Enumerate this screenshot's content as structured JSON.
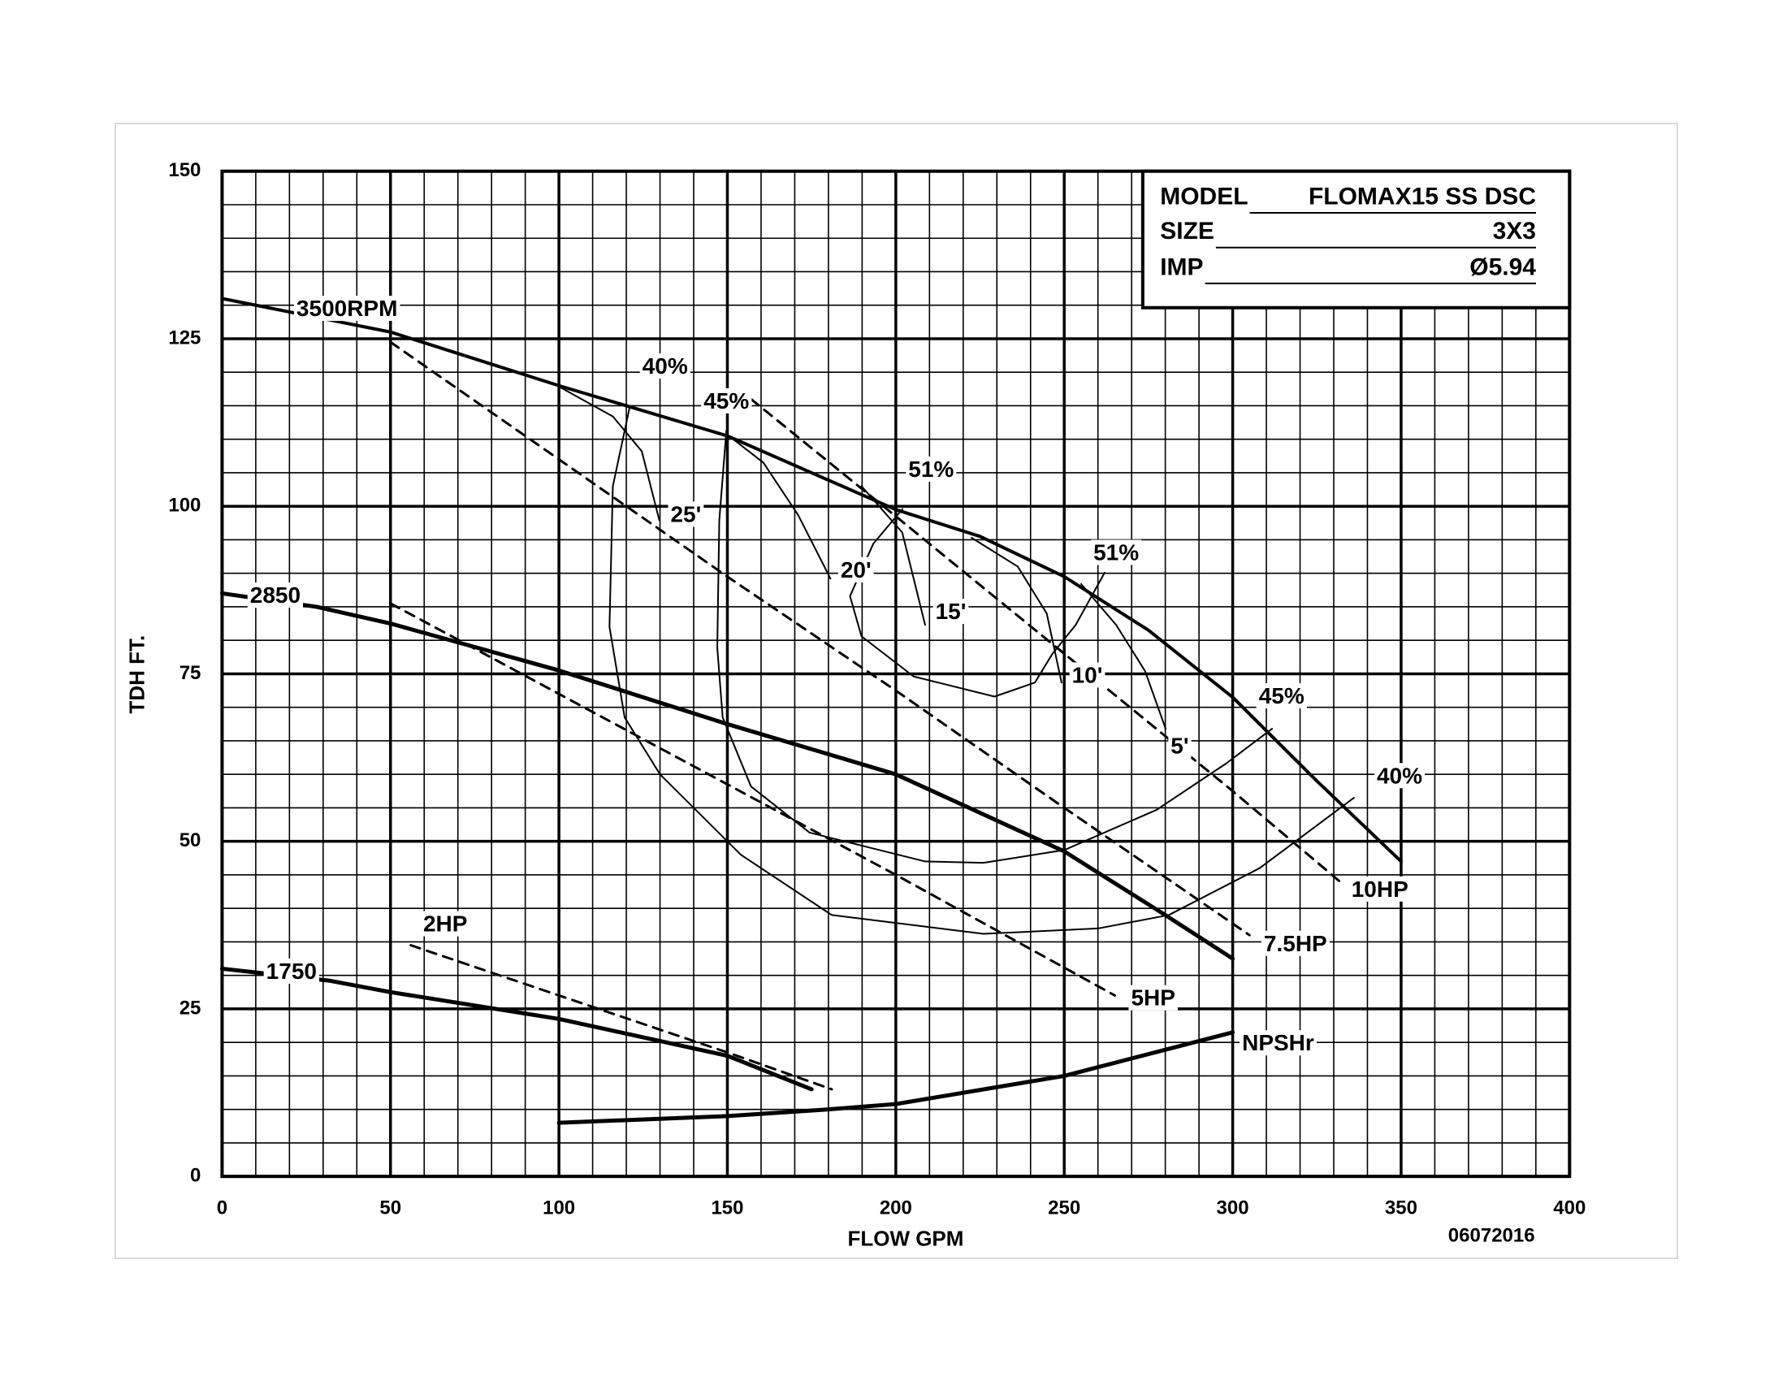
{
  "chart_data": {
    "type": "line",
    "xlabel": "FLOW GPM",
    "ylabel": "TDH FT.",
    "footer": "06072016",
    "info": {
      "model_label": "MODEL",
      "model": "FLOMAX15 SS DSC",
      "size_label": "SIZE",
      "size": "3X3",
      "imp_label": "IMP",
      "imp": "Ø5.94"
    },
    "xlim": [
      0,
      400
    ],
    "ylim": [
      0,
      150
    ],
    "xticks": [
      0,
      50,
      100,
      150,
      200,
      250,
      300,
      350,
      400
    ],
    "yticks": [
      0,
      25,
      50,
      75,
      100,
      125,
      150
    ],
    "grid": true,
    "minor_xstep": 10,
    "minor_ystep": 5,
    "series": [
      {
        "name": "3500RPM",
        "color": "#000000",
        "width": 4,
        "dash": false,
        "x": [
          0,
          50,
          100,
          150,
          200,
          225,
          250,
          275,
          300,
          325,
          350
        ],
        "values": [
          131,
          126,
          118,
          110.5,
          99.5,
          95.5,
          89.5,
          81.5,
          71.5,
          59,
          47
        ]
      },
      {
        "name": "2850",
        "color": "#000000",
        "width": 5,
        "dash": false,
        "x": [
          0,
          28,
          50,
          100,
          150,
          200,
          250,
          280,
          300
        ],
        "values": [
          87,
          85,
          82.5,
          75.5,
          67.5,
          60,
          48.5,
          39,
          32.5
        ]
      },
      {
        "name": "1750",
        "color": "#000000",
        "width": 5,
        "dash": false,
        "x": [
          0,
          32,
          50,
          100,
          150,
          175
        ],
        "values": [
          31,
          29.2,
          27.5,
          23.5,
          18,
          13
        ]
      },
      {
        "name": "NPSHr",
        "color": "#000000",
        "width": 5,
        "dash": false,
        "x": [
          100,
          150,
          180,
          200,
          250,
          300
        ],
        "values": [
          8,
          9,
          10,
          10.8,
          15,
          21.5
        ]
      },
      {
        "name": "10HP",
        "color": "#000000",
        "width": 3,
        "dash": true,
        "x": [
          157,
          200,
          250,
          300,
          333
        ],
        "values": [
          116,
          98.5,
          78,
          57.5,
          43.5
        ]
      },
      {
        "name": "7.5HP",
        "color": "#000000",
        "width": 3,
        "dash": true,
        "x": [
          50,
          100,
          150,
          200,
          250,
          305
        ],
        "values": [
          124.5,
          107,
          89.5,
          72.5,
          55,
          36
        ]
      },
      {
        "name": "5HP",
        "color": "#000000",
        "width": 3,
        "dash": true,
        "x": [
          50,
          100,
          150,
          200,
          265
        ],
        "values": [
          85.5,
          72,
          58.5,
          45,
          27
        ]
      },
      {
        "name": "2HP",
        "color": "#000000",
        "width": 3,
        "dash": true,
        "x": [
          56,
          100,
          150,
          181
        ],
        "values": [
          34.5,
          27,
          18.5,
          13
        ]
      },
      {
        "name": "40%",
        "color": "#000000",
        "width": 2,
        "dash": false,
        "x": [
          121,
          116,
          115,
          119.5,
          130,
          154,
          181,
          226,
          260,
          281,
          308,
          336
        ],
        "values": [
          114.8,
          103,
          82,
          68.5,
          60,
          48,
          39,
          36.2,
          37,
          39,
          46,
          56.5
        ]
      },
      {
        "name": "45%",
        "color": "#000000",
        "width": 2,
        "dash": false,
        "x": [
          149.7,
          147.6,
          147,
          148.6,
          157,
          174.4,
          208.7,
          226,
          250,
          277.4,
          298,
          311.7
        ],
        "values": [
          111.3,
          97.9,
          78.9,
          68.5,
          58.2,
          51.3,
          47,
          46.8,
          48.7,
          54.7,
          61.6,
          66.8
        ]
      },
      {
        "name": "51%",
        "color": "#000000",
        "width": 2,
        "dash": false,
        "x": [
          202,
          193.3,
          186.4,
          189.8,
          205.3,
          229.3,
          241.3,
          246.5,
          253.4,
          262
        ],
        "values": [
          99.6,
          94.4,
          86.6,
          80.6,
          74.6,
          71.6,
          73.7,
          78,
          82.3,
          90.1
        ]
      },
      {
        "name": "25'",
        "color": "#000000",
        "width": 2,
        "dash": false,
        "x": [
          100.6,
          116,
          124.6,
          129.8
        ],
        "values": [
          117.7,
          113.4,
          108.2,
          97.9
        ]
      },
      {
        "name": "20'",
        "color": "#000000",
        "width": 2,
        "dash": false,
        "x": [
          149.7,
          160.7,
          171,
          180.6
        ],
        "values": [
          110.8,
          106.5,
          98.7,
          89.2
        ]
      },
      {
        "name": "15'",
        "color": "#000000",
        "width": 2,
        "dash": false,
        "x": [
          189.8,
          201.9,
          208.7
        ],
        "values": [
          103,
          96.1,
          82.3
        ]
      },
      {
        "name": "10'",
        "color": "#000000",
        "width": 2,
        "dash": false,
        "x": [
          222.5,
          236.2,
          244.8,
          249.2
        ],
        "values": [
          95.3,
          91,
          84,
          73.7
        ]
      },
      {
        "name": "5'",
        "color": "#000000",
        "width": 2,
        "dash": false,
        "x": [
          255,
          265.4,
          274,
          280.1
        ],
        "values": [
          88.4,
          82.3,
          75.4,
          66.8
        ]
      }
    ]
  }
}
